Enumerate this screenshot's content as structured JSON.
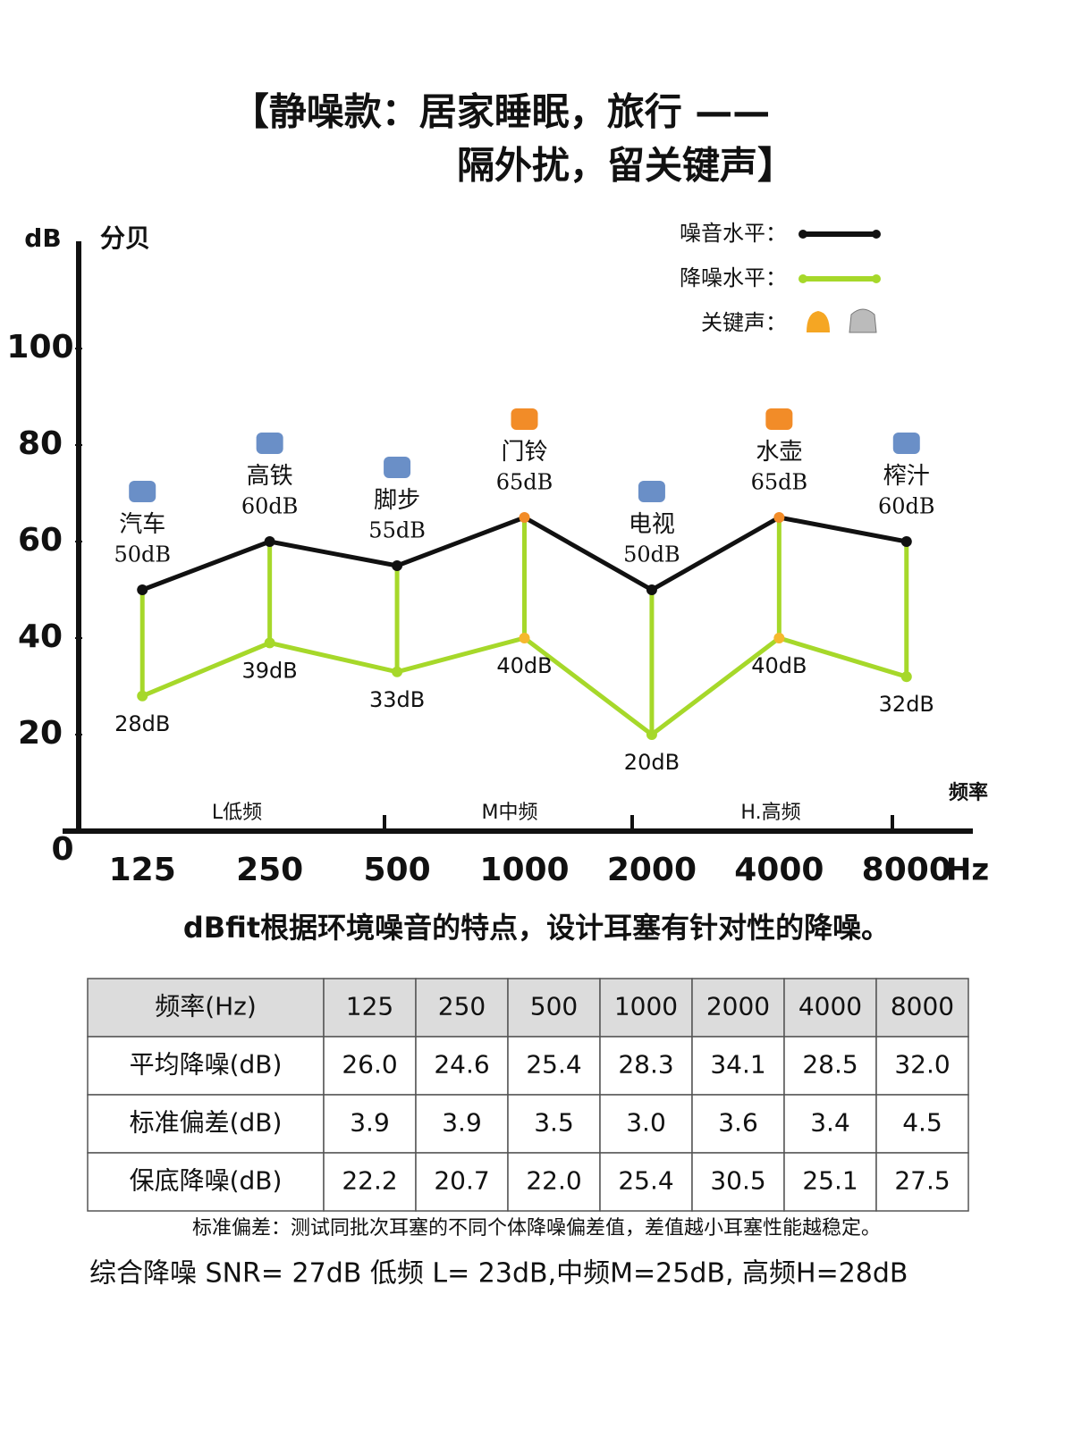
{
  "title": [
    "【静噪款：居家睡眠，旅行 ——",
    "隔外扰，留关键声】"
  ],
  "chart_data": {
    "type": "line",
    "y_unit": "dB",
    "y_label": "分贝",
    "x_label": "频率",
    "x_unit": "Hz",
    "categories": [
      "125",
      "250",
      "500",
      "1000",
      "2000",
      "4000",
      "8000"
    ],
    "sound_names": [
      "汽车",
      "高铁",
      "脚步",
      "门铃",
      "电视",
      "水壶",
      "榨汁"
    ],
    "bands": [
      "L低频",
      "M中频",
      "H.高频"
    ],
    "series": [
      {
        "name": "噪音水平：",
        "color": "#111111",
        "values": [
          50,
          60,
          55,
          65,
          50,
          65,
          60
        ],
        "value_labels": [
          "50dB",
          "60dB",
          "55dB",
          "65dB",
          "50dB",
          "65dB",
          "60dB"
        ],
        "point_colors": [
          "#111111",
          "#111111",
          "#111111",
          "#f28c28",
          "#111111",
          "#f28c28",
          "#111111"
        ]
      },
      {
        "name": "降噪水平：",
        "color": "#a6d82a",
        "values": [
          28,
          39,
          33,
          40,
          20,
          40,
          32
        ],
        "value_labels": [
          "28dB",
          "39dB",
          "33dB",
          "40dB",
          "20dB",
          "40dB",
          "32dB"
        ],
        "point_colors": [
          "#a6d82a",
          "#a6d82a",
          "#a6d82a",
          "#f5b82e",
          "#a6d82a",
          "#f5b82e",
          "#a6d82a"
        ]
      }
    ],
    "key_sound_label": "关键声：",
    "ylim": [
      0,
      120
    ],
    "yticks": [
      0,
      20,
      40,
      60,
      80,
      100
    ]
  },
  "subtitle": "dBfit根据环境噪音的特点，设计耳塞有针对性的降噪。",
  "table": {
    "header": [
      "频率(Hz)",
      "125",
      "250",
      "500",
      "1000",
      "2000",
      "4000",
      "8000"
    ],
    "rows": [
      [
        "平均降噪(dB)",
        "26.0",
        "24.6",
        "25.4",
        "28.3",
        "34.1",
        "28.5",
        "32.0"
      ],
      [
        "标准偏差(dB)",
        "3.9",
        "3.9",
        "3.5",
        "3.0",
        "3.6",
        "3.4",
        "4.5"
      ],
      [
        "保底降噪(dB)",
        "22.2",
        "20.7",
        "22.0",
        "25.4",
        "30.5",
        "25.1",
        "27.5"
      ]
    ]
  },
  "footnote": "标准偏差：测试同批次耳塞的不同个体降噪偏差值，差值越小耳塞性能越稳定。",
  "summary": "综合降噪 SNR= 27dB 低频 L= 23dB,中频M=25dB, 高频H=28dB"
}
